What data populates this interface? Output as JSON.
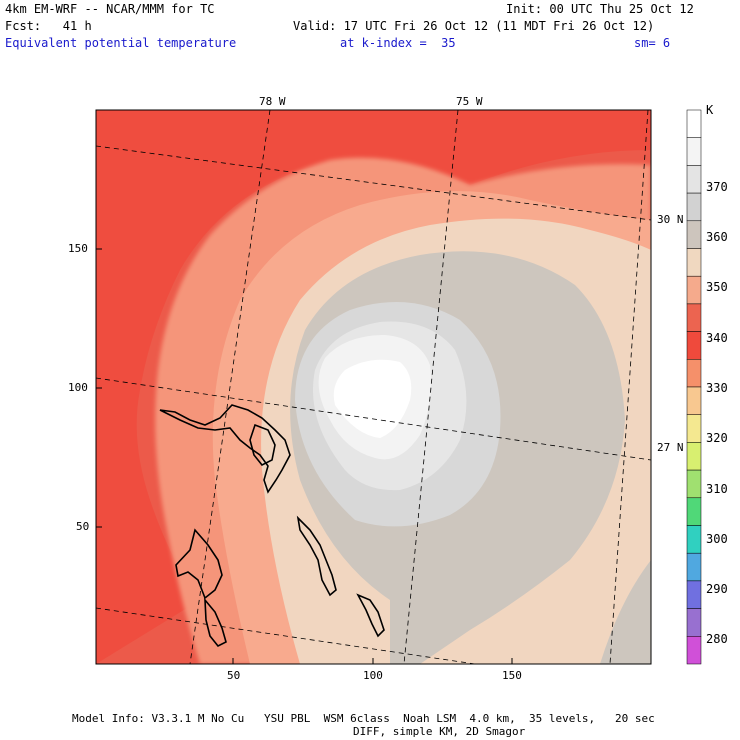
{
  "header": {
    "model": "4km EM-WRF -- NCAR/MMM for TC",
    "init": "Init: 00 UTC Thu 25 Oct 12",
    "forecast": "Fcst:   41 h",
    "valid": "Valid: 17 UTC Fri 26 Oct 12 (11 MDT Fri 26 Oct 12)",
    "field": "Equivalent potential temperature",
    "kindex": "at k-index =  35",
    "sm": "sm= 6"
  },
  "map": {
    "lon_labels": [
      "78 W",
      "75 W"
    ],
    "lat_labels": [
      "30 N",
      "27 N"
    ],
    "x_ticks": [
      "50",
      "100",
      "150"
    ],
    "y_ticks": [
      "150",
      "100",
      "50"
    ],
    "grid_x_range": [
      1,
      200
    ],
    "grid_y_range": [
      1,
      200
    ]
  },
  "colorbar": {
    "unit": "K",
    "labels": [
      "370",
      "360",
      "350",
      "340",
      "330",
      "320",
      "310",
      "300",
      "290",
      "280"
    ],
    "colors": [
      "#ffffff",
      "#f4f4f4",
      "#e4e4e4",
      "#d2d2d2",
      "#cdc5bd",
      "#f0d8c0",
      "#f5aa8c",
      "#ec6450",
      "#ef4a3c",
      "#f5906a",
      "#f8c890",
      "#f4e890",
      "#d8ef70",
      "#a0e070",
      "#50d878",
      "#30d0c0",
      "#50a8e0",
      "#7070e0",
      "#9870d0",
      "#d050d8"
    ]
  },
  "footer": {
    "line1": "Model Info: V3.3.1 M No Cu   YSU PBL  WSM 6class  Noah LSM  4.0 km,  35 levels,   20 sec",
    "line2": "DIFF, simple KM, 2D Smagor"
  }
}
